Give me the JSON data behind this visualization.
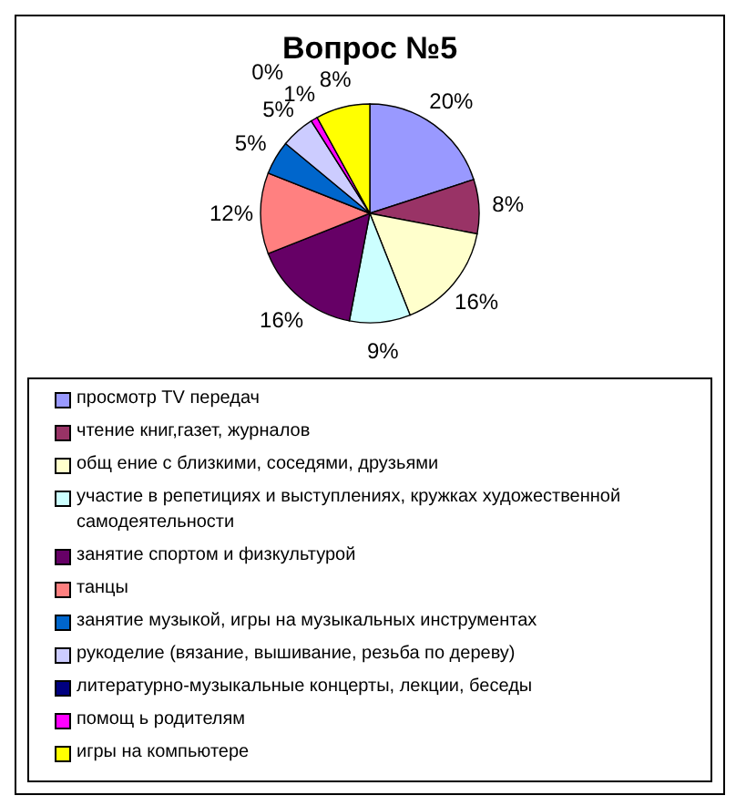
{
  "chart_data": {
    "type": "pie",
    "title": "Вопрос №5",
    "categories": [
      "просмотр TV передач",
      "чтение книг,газет, журналов",
      "общ ение с близкими, соседями, друзьями",
      "участие в репетициях и выступлениях, кружках художественной самодеятельности",
      "занятие спортом и физкультурой",
      "танцы",
      "занятие музыкой, игры на музыкальных инструментах",
      "рукоделие (вязание, вышивание, резьба по дереву)",
      "литературно-музыкальные концерты, лекции, беседы",
      "помощ ь родителям",
      "игры на компьютере"
    ],
    "values": [
      20,
      8,
      16,
      9,
      16,
      12,
      5,
      5,
      0,
      1,
      8
    ],
    "colors": [
      "#9999ff",
      "#993366",
      "#ffffcc",
      "#ccffff",
      "#660066",
      "#ff8080",
      "#0066cc",
      "#ccccff",
      "#000080",
      "#ff00ff",
      "#ffff00"
    ],
    "value_labels": [
      "20%",
      "8%",
      "16%",
      "9%",
      "16%",
      "12%",
      "5%",
      "5%",
      "0%",
      "1%",
      "8%"
    ],
    "legend": "bottom"
  }
}
